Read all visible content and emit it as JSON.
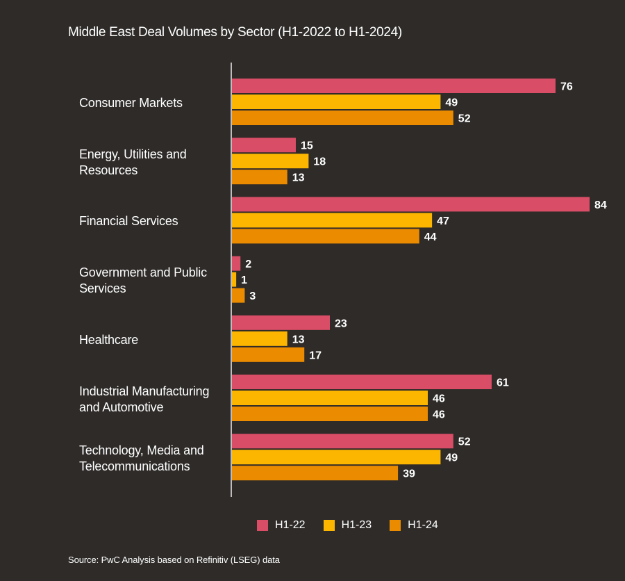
{
  "chart_data": {
    "type": "bar",
    "orientation": "horizontal",
    "title": "Middle East Deal Volumes by Sector (H1-2022 to H1-2024)",
    "categories": [
      "Consumer Markets",
      "Energy, Utilities and Resources",
      "Financial Services",
      "Government and Public Services",
      "Healthcare",
      "Industrial Manufacturing and Automotive",
      "Technology, Media and Telecommunications"
    ],
    "category_lines": [
      [
        "Consumer Markets"
      ],
      [
        "Energy, Utilities and",
        "Resources"
      ],
      [
        "Financial Services"
      ],
      [
        "Government and Public",
        "Services"
      ],
      [
        "Healthcare"
      ],
      [
        "Industrial Manufacturing",
        "and Automotive"
      ],
      [
        "Technology, Media and",
        "Telecommunications"
      ]
    ],
    "series": [
      {
        "name": "H1-22",
        "color": "#d94d66",
        "values": [
          76,
          15,
          84,
          2,
          23,
          61,
          52
        ]
      },
      {
        "name": "H1-23",
        "color": "#fdb600",
        "values": [
          49,
          18,
          47,
          1,
          13,
          46,
          49
        ]
      },
      {
        "name": "H1-24",
        "color": "#eb8c00",
        "values": [
          52,
          13,
          44,
          3,
          17,
          46,
          39
        ]
      }
    ],
    "xlim": [
      0,
      84
    ],
    "xlabel": "",
    "ylabel": "",
    "grid": false,
    "legend_position": "bottom",
    "data_labels": true
  },
  "source": "Source: PwC Analysis based on Refinitiv (LSEG) data",
  "colors": {
    "background": "#2e2b29",
    "axis": "#bdbdbd",
    "text": "#ffffff"
  }
}
